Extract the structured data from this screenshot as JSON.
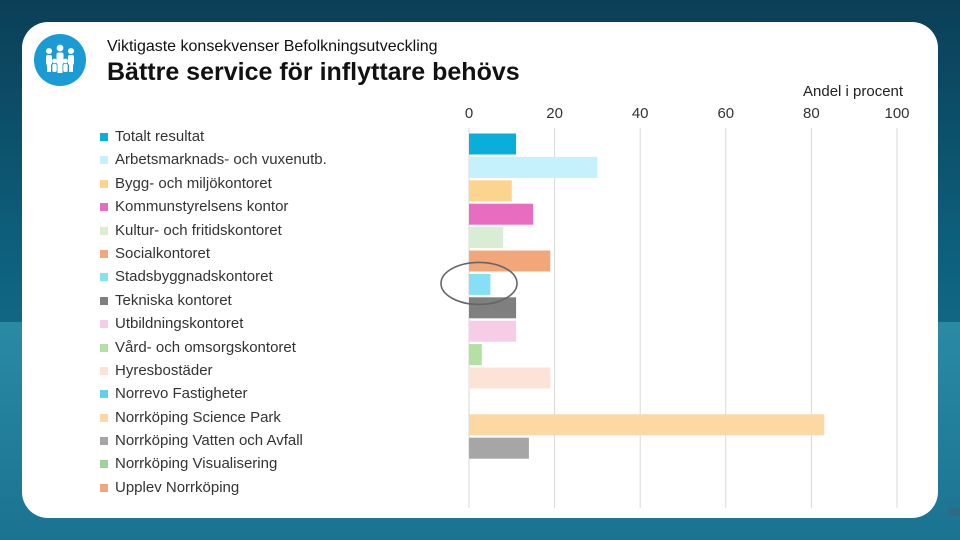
{
  "header": {
    "subtitle": "Viktigaste konsekvenser Befolkningsutveckling",
    "title": "Bättre service för inflyttare behövs",
    "logo_icon": "people-group-icon"
  },
  "colors": {
    "logo": "#1a9bd4",
    "highlight_ellipse": "#666666"
  },
  "chart_data": {
    "type": "bar",
    "orientation": "horizontal",
    "title": "Bättre service för inflyttare behövs",
    "xlabel": "Andel i procent",
    "xlim": [
      0,
      100
    ],
    "xticks": [
      "0",
      "20",
      "40",
      "60",
      "80",
      "100"
    ],
    "grid": true,
    "legend_position": "left",
    "highlighted_category": "Stadsbyggnadskontoret",
    "categories": [
      "Totalt resultat",
      "Arbetsmarknads- och vuxenutb.",
      "Bygg- och miljökontoret",
      "Kommunstyrelsens kontor",
      "Kultur- och fritidskontoret",
      "Socialkontoret",
      "Stadsbyggnadskontoret",
      "Tekniska kontoret",
      "Utbildningskontoret",
      "Vård- och omsorgskontoret",
      "Hyresbostäder",
      "Norrevo Fastigheter",
      "Norrköping Science Park",
      "Norrköping Vatten och Avfall",
      "Norrköping Visualisering",
      "Upplev Norrköping"
    ],
    "values": [
      11,
      30,
      10,
      15,
      8,
      19,
      5,
      11,
      11,
      3,
      19,
      0,
      83,
      14,
      0,
      0
    ],
    "colors": [
      "#0aaedb",
      "#c5f1fc",
      "#fdd48e",
      "#e86cbf",
      "#d8edd3",
      "#f2a77b",
      "#86e0f5",
      "#7f7f7f",
      "#f6cde6",
      "#b3e0a4",
      "#fde2d6",
      "#5fd3ee",
      "#fdd8a2",
      "#a6a6a6",
      "#9bd39b",
      "#f2a77b"
    ]
  }
}
